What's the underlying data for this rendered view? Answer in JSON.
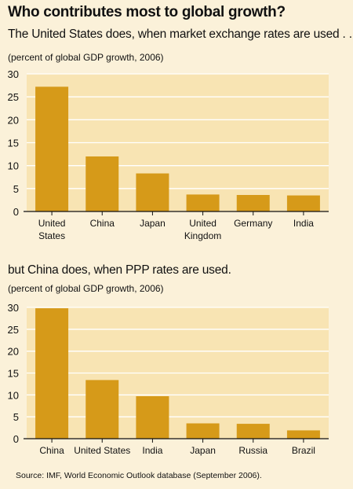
{
  "title": "Who contributes most to global growth?",
  "source": "Source: IMF, World Economic Outlook database (September 2006).",
  "colors": {
    "bar": "#d69a19",
    "plot_bg": "#f8e4b3",
    "page_bg": "#fbf1d9",
    "grid": "#ffffff"
  },
  "chart_data": [
    {
      "type": "bar",
      "subtitle": "The United States does, when market exchange rates are used . . .",
      "unit_label": "(percent of global GDP growth, 2006)",
      "categories": [
        [
          "United",
          "States"
        ],
        [
          "China"
        ],
        [
          "Japan"
        ],
        [
          "United",
          "Kingdom"
        ],
        [
          "Germany"
        ],
        [
          "India"
        ]
      ],
      "values": [
        27.2,
        12.0,
        8.3,
        3.7,
        3.6,
        3.5
      ],
      "ylim": [
        0,
        30
      ],
      "yticks": [
        "0",
        "5",
        "10",
        "15",
        "20",
        "25",
        "30"
      ],
      "grid": true
    },
    {
      "type": "bar",
      "subtitle": "but China does, when PPP rates are used.",
      "unit_label": "(percent of global GDP growth, 2006)",
      "categories": [
        [
          "China"
        ],
        [
          "United States"
        ],
        [
          "India"
        ],
        [
          "Japan"
        ],
        [
          "Russia"
        ],
        [
          "Brazil"
        ]
      ],
      "values": [
        29.8,
        13.4,
        9.7,
        3.5,
        3.4,
        1.9
      ],
      "ylim": [
        0,
        30
      ],
      "yticks": [
        "0",
        "5",
        "10",
        "15",
        "20",
        "25",
        "30"
      ],
      "grid": true
    }
  ]
}
